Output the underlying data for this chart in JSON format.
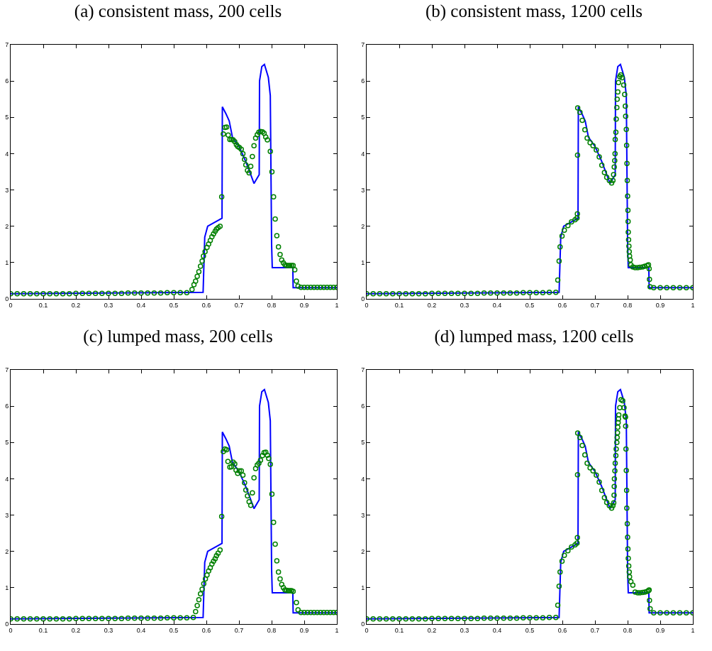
{
  "chart_data": [
    {
      "type": "line",
      "title": "(a) consistent mass, 200 cells",
      "xlim": [
        0,
        1
      ],
      "ylim": [
        0,
        7
      ],
      "xticks": [
        0,
        0.1,
        0.2,
        0.3,
        0.4,
        0.5,
        0.6,
        0.7,
        0.8,
        0.9,
        1
      ],
      "yticks": [
        0,
        1,
        2,
        3,
        4,
        5,
        6,
        7
      ],
      "grid": false,
      "series": [
        {
          "color": "#0000ff",
          "marker": "none",
          "x": [
            0,
            0.59,
            0.595,
            0.604,
            0.648,
            0.649,
            0.66,
            0.67,
            0.68,
            0.7,
            0.72,
            0.735,
            0.746,
            0.762,
            0.763,
            0.77,
            0.778,
            0.79,
            0.796,
            0.8,
            0.802,
            0.845,
            0.865,
            0.866,
            1
          ],
          "values": [
            0.14,
            0.18,
            1.7,
            2.0,
            2.22,
            5.29,
            5.1,
            4.9,
            4.45,
            4.2,
            3.8,
            3.45,
            3.18,
            3.42,
            6.0,
            6.4,
            6.46,
            6.1,
            5.6,
            1.5,
            0.86,
            0.86,
            0.87,
            0.31,
            0.31
          ]
        },
        {
          "type": "scatter",
          "marker": "circle",
          "color": "#008000",
          "x": [
            0,
            0.02,
            0.04,
            0.06,
            0.08,
            0.1,
            0.12,
            0.14,
            0.16,
            0.18,
            0.2,
            0.22,
            0.24,
            0.26,
            0.28,
            0.3,
            0.32,
            0.34,
            0.36,
            0.38,
            0.4,
            0.42,
            0.44,
            0.46,
            0.48,
            0.5,
            0.52,
            0.54,
            0.556,
            0.562,
            0.567,
            0.572,
            0.577,
            0.582,
            0.587,
            0.591,
            0.596,
            0.602,
            0.607,
            0.612,
            0.617,
            0.622,
            0.627,
            0.631,
            0.636,
            0.642,
            0.647,
            0.652,
            0.657,
            0.662,
            0.667,
            0.672,
            0.677,
            0.682,
            0.687,
            0.692,
            0.696,
            0.701,
            0.707,
            0.712,
            0.717,
            0.721,
            0.726,
            0.731,
            0.736,
            0.741,
            0.746,
            0.751,
            0.756,
            0.761,
            0.766,
            0.772,
            0.777,
            0.782,
            0.787,
            0.796,
            0.801,
            0.806,
            0.811,
            0.816,
            0.821,
            0.826,
            0.831,
            0.836,
            0.841,
            0.846,
            0.851,
            0.856,
            0.861,
            0.866,
            0.871,
            0.876,
            0.881,
            0.89,
            0.9,
            0.91,
            0.92,
            0.93,
            0.94,
            0.95,
            0.96,
            0.97,
            0.98,
            0.99,
            1
          ],
          "values": [
            0.14,
            0.14,
            0.14,
            0.14,
            0.14,
            0.14,
            0.14,
            0.14,
            0.14,
            0.14,
            0.15,
            0.15,
            0.15,
            0.15,
            0.15,
            0.15,
            0.15,
            0.15,
            0.16,
            0.16,
            0.16,
            0.16,
            0.16,
            0.16,
            0.17,
            0.17,
            0.17,
            0.17,
            0.26,
            0.39,
            0.49,
            0.62,
            0.75,
            0.9,
            1.04,
            1.18,
            1.3,
            1.42,
            1.51,
            1.61,
            1.71,
            1.79,
            1.86,
            1.92,
            1.96,
            2.0,
            2.81,
            4.54,
            4.72,
            4.73,
            4.51,
            4.39,
            4.39,
            4.38,
            4.33,
            4.25,
            4.2,
            4.17,
            4.12,
            4.0,
            3.84,
            3.69,
            3.54,
            3.47,
            3.65,
            3.92,
            4.22,
            4.43,
            4.52,
            4.59,
            4.61,
            4.6,
            4.56,
            4.46,
            4.38,
            4.06,
            3.5,
            2.81,
            2.2,
            1.74,
            1.43,
            1.22,
            1.07,
            0.99,
            0.94,
            0.92,
            0.92,
            0.92,
            0.92,
            0.92,
            0.8,
            0.49,
            0.35,
            0.32,
            0.32,
            0.32,
            0.32,
            0.32,
            0.32,
            0.32,
            0.32,
            0.32,
            0.32,
            0.32,
            0.32
          ]
        }
      ]
    },
    {
      "type": "line",
      "title": "(b) consistent mass, 1200 cells",
      "xlim": [
        0,
        1
      ],
      "ylim": [
        0,
        7
      ],
      "xticks": [
        0,
        0.1,
        0.2,
        0.3,
        0.4,
        0.5,
        0.6,
        0.7,
        0.8,
        0.9,
        1
      ],
      "yticks": [
        0,
        1,
        2,
        3,
        4,
        5,
        6,
        7
      ],
      "grid": false,
      "series": [
        {
          "color": "#0000ff",
          "marker": "none",
          "x": [
            0,
            0.59,
            0.595,
            0.604,
            0.648,
            0.649,
            0.66,
            0.67,
            0.68,
            0.7,
            0.72,
            0.735,
            0.746,
            0.762,
            0.763,
            0.77,
            0.778,
            0.79,
            0.796,
            0.8,
            0.802,
            0.845,
            0.865,
            0.866,
            1
          ],
          "values": [
            0.14,
            0.18,
            1.7,
            2.0,
            2.22,
            5.29,
            5.1,
            4.9,
            4.45,
            4.2,
            3.8,
            3.45,
            3.18,
            3.42,
            6.0,
            6.4,
            6.46,
            6.1,
            5.6,
            1.5,
            0.86,
            0.86,
            0.87,
            0.31,
            0.31
          ]
        },
        {
          "type": "scatter",
          "marker": "circle",
          "color": "#008000",
          "x": [
            0,
            0.02,
            0.04,
            0.06,
            0.08,
            0.1,
            0.12,
            0.14,
            0.16,
            0.18,
            0.2,
            0.22,
            0.24,
            0.26,
            0.28,
            0.3,
            0.32,
            0.34,
            0.36,
            0.38,
            0.4,
            0.42,
            0.44,
            0.46,
            0.48,
            0.5,
            0.52,
            0.54,
            0.56,
            0.58,
            0.586,
            0.59,
            0.593,
            0.599,
            0.606,
            0.617,
            0.628,
            0.639,
            0.645,
            0.646,
            0.6465,
            0.647,
            0.654,
            0.661,
            0.669,
            0.676,
            0.685,
            0.694,
            0.704,
            0.713,
            0.721,
            0.729,
            0.736,
            0.744,
            0.751,
            0.755,
            0.757,
            0.759,
            0.7605,
            0.7615,
            0.762,
            0.764,
            0.765,
            0.767,
            0.768,
            0.77,
            0.772,
            0.776,
            0.779,
            0.783,
            0.788,
            0.791,
            0.793,
            0.794,
            0.796,
            0.797,
            0.798,
            0.799,
            0.8,
            0.801,
            0.8015,
            0.802,
            0.803,
            0.804,
            0.805,
            0.806,
            0.808,
            0.81,
            0.816,
            0.823,
            0.831,
            0.838,
            0.846,
            0.853,
            0.86,
            0.864,
            0.866,
            0.867,
            0.869,
            0.88,
            0.9,
            0.92,
            0.94,
            0.96,
            0.98,
            1
          ],
          "values": [
            0.14,
            0.14,
            0.14,
            0.14,
            0.14,
            0.14,
            0.14,
            0.14,
            0.14,
            0.14,
            0.15,
            0.15,
            0.15,
            0.15,
            0.15,
            0.15,
            0.15,
            0.15,
            0.16,
            0.16,
            0.16,
            0.16,
            0.16,
            0.16,
            0.17,
            0.17,
            0.17,
            0.17,
            0.18,
            0.18,
            0.52,
            1.04,
            1.43,
            1.73,
            1.89,
            2.02,
            2.12,
            2.18,
            2.23,
            2.34,
            3.96,
            5.26,
            5.14,
            4.92,
            4.66,
            4.43,
            4.3,
            4.22,
            4.1,
            3.91,
            3.68,
            3.48,
            3.35,
            3.26,
            3.19,
            3.26,
            3.42,
            3.63,
            3.81,
            4.0,
            4.39,
            4.59,
            4.95,
            5.27,
            5.5,
            5.7,
            5.96,
            6.12,
            6.17,
            6.09,
            5.89,
            5.63,
            5.31,
            5.03,
            4.67,
            4.23,
            3.73,
            3.26,
            2.83,
            2.44,
            2.13,
            1.84,
            1.63,
            1.45,
            1.3,
            1.18,
            1.07,
            0.94,
            0.88,
            0.86,
            0.86,
            0.87,
            0.88,
            0.9,
            0.92,
            0.94,
            0.83,
            0.54,
            0.33,
            0.31,
            0.31,
            0.31,
            0.31,
            0.31,
            0.31,
            0.31
          ]
        }
      ]
    },
    {
      "type": "line",
      "title": "(c) lumped mass, 200 cells",
      "xlim": [
        0,
        1
      ],
      "ylim": [
        0,
        7
      ],
      "xticks": [
        0,
        0.1,
        0.2,
        0.3,
        0.4,
        0.5,
        0.6,
        0.7,
        0.8,
        0.9,
        1
      ],
      "yticks": [
        0,
        1,
        2,
        3,
        4,
        5,
        6,
        7
      ],
      "grid": false,
      "series": [
        {
          "color": "#0000ff",
          "marker": "none",
          "x": [
            0,
            0.59,
            0.595,
            0.604,
            0.648,
            0.649,
            0.66,
            0.67,
            0.68,
            0.7,
            0.72,
            0.735,
            0.746,
            0.762,
            0.763,
            0.77,
            0.778,
            0.79,
            0.796,
            0.8,
            0.802,
            0.845,
            0.865,
            0.866,
            1
          ],
          "values": [
            0.14,
            0.18,
            1.7,
            2.0,
            2.22,
            5.29,
            5.1,
            4.9,
            4.45,
            4.2,
            3.8,
            3.45,
            3.18,
            3.42,
            6.0,
            6.4,
            6.46,
            6.1,
            5.6,
            1.5,
            0.86,
            0.86,
            0.87,
            0.31,
            0.31
          ]
        },
        {
          "type": "scatter",
          "marker": "circle",
          "color": "#008000",
          "x": [
            0,
            0.02,
            0.04,
            0.06,
            0.08,
            0.1,
            0.12,
            0.14,
            0.16,
            0.18,
            0.2,
            0.22,
            0.24,
            0.26,
            0.28,
            0.3,
            0.32,
            0.34,
            0.36,
            0.38,
            0.4,
            0.42,
            0.44,
            0.46,
            0.48,
            0.5,
            0.52,
            0.54,
            0.56,
            0.567,
            0.572,
            0.577,
            0.582,
            0.587,
            0.592,
            0.597,
            0.602,
            0.607,
            0.612,
            0.617,
            0.622,
            0.627,
            0.631,
            0.636,
            0.642,
            0.647,
            0.652,
            0.657,
            0.662,
            0.666,
            0.672,
            0.677,
            0.682,
            0.687,
            0.691,
            0.696,
            0.701,
            0.707,
            0.712,
            0.717,
            0.721,
            0.726,
            0.731,
            0.736,
            0.741,
            0.746,
            0.751,
            0.756,
            0.761,
            0.766,
            0.772,
            0.777,
            0.782,
            0.787,
            0.791,
            0.796,
            0.801,
            0.806,
            0.811,
            0.816,
            0.821,
            0.826,
            0.831,
            0.836,
            0.841,
            0.846,
            0.851,
            0.856,
            0.861,
            0.866,
            0.876,
            0.881,
            0.89,
            0.9,
            0.91,
            0.92,
            0.93,
            0.94,
            0.95,
            0.96,
            0.97,
            0.98,
            0.99,
            1
          ],
          "values": [
            0.14,
            0.14,
            0.14,
            0.14,
            0.14,
            0.14,
            0.14,
            0.14,
            0.14,
            0.14,
            0.15,
            0.15,
            0.15,
            0.15,
            0.15,
            0.15,
            0.15,
            0.15,
            0.16,
            0.16,
            0.16,
            0.16,
            0.16,
            0.16,
            0.17,
            0.17,
            0.17,
            0.17,
            0.18,
            0.34,
            0.51,
            0.67,
            0.83,
            0.96,
            1.11,
            1.24,
            1.35,
            1.46,
            1.55,
            1.65,
            1.73,
            1.8,
            1.88,
            1.95,
            2.04,
            2.96,
            4.75,
            4.82,
            4.8,
            4.48,
            4.32,
            4.33,
            4.46,
            4.41,
            4.24,
            4.15,
            4.22,
            4.22,
            4.1,
            3.89,
            3.69,
            3.53,
            3.37,
            3.27,
            3.61,
            4.03,
            4.28,
            4.38,
            4.43,
            4.51,
            4.64,
            4.72,
            4.73,
            4.65,
            4.56,
            4.4,
            3.58,
            2.8,
            2.2,
            1.74,
            1.43,
            1.24,
            1.09,
            1.0,
            0.94,
            0.93,
            0.92,
            0.92,
            0.92,
            0.9,
            0.59,
            0.39,
            0.32,
            0.32,
            0.32,
            0.32,
            0.32,
            0.32,
            0.32,
            0.32,
            0.32,
            0.32,
            0.32,
            0.32
          ]
        }
      ]
    },
    {
      "type": "line",
      "title": "(d) lumped mass, 1200 cells",
      "xlim": [
        0,
        1
      ],
      "ylim": [
        0,
        7
      ],
      "xticks": [
        0,
        0.1,
        0.2,
        0.3,
        0.4,
        0.5,
        0.6,
        0.7,
        0.8,
        0.9,
        1
      ],
      "yticks": [
        0,
        1,
        2,
        3,
        4,
        5,
        6,
        7
      ],
      "grid": false,
      "series": [
        {
          "color": "#0000ff",
          "marker": "none",
          "x": [
            0,
            0.59,
            0.595,
            0.604,
            0.648,
            0.649,
            0.66,
            0.67,
            0.68,
            0.7,
            0.72,
            0.735,
            0.746,
            0.762,
            0.763,
            0.77,
            0.778,
            0.79,
            0.796,
            0.8,
            0.802,
            0.845,
            0.865,
            0.866,
            1
          ],
          "values": [
            0.14,
            0.18,
            1.7,
            2.0,
            2.22,
            5.29,
            5.1,
            4.9,
            4.45,
            4.2,
            3.8,
            3.45,
            3.18,
            3.42,
            6.0,
            6.4,
            6.46,
            6.1,
            5.6,
            1.5,
            0.86,
            0.86,
            0.87,
            0.31,
            0.31
          ]
        },
        {
          "type": "scatter",
          "marker": "circle",
          "color": "#008000",
          "x": [
            0,
            0.02,
            0.04,
            0.06,
            0.08,
            0.1,
            0.12,
            0.14,
            0.16,
            0.18,
            0.2,
            0.22,
            0.24,
            0.26,
            0.28,
            0.3,
            0.32,
            0.34,
            0.36,
            0.38,
            0.4,
            0.42,
            0.44,
            0.46,
            0.48,
            0.5,
            0.52,
            0.54,
            0.56,
            0.58,
            0.586,
            0.59,
            0.593,
            0.599,
            0.606,
            0.617,
            0.628,
            0.639,
            0.645,
            0.646,
            0.6465,
            0.647,
            0.654,
            0.661,
            0.669,
            0.676,
            0.685,
            0.694,
            0.704,
            0.713,
            0.721,
            0.729,
            0.736,
            0.744,
            0.751,
            0.755,
            0.7575,
            0.7585,
            0.759,
            0.7595,
            0.761,
            0.762,
            0.764,
            0.765,
            0.767,
            0.768,
            0.769,
            0.77,
            0.771,
            0.772,
            0.773,
            0.776,
            0.78,
            0.785,
            0.789,
            0.792,
            0.7935,
            0.794,
            0.795,
            0.796,
            0.797,
            0.7975,
            0.799,
            0.8,
            0.801,
            0.802,
            0.8035,
            0.805,
            0.806,
            0.81,
            0.816,
            0.823,
            0.831,
            0.838,
            0.846,
            0.853,
            0.86,
            0.864,
            0.866,
            0.867,
            0.869,
            0.88,
            0.9,
            0.92,
            0.94,
            0.96,
            0.98,
            1
          ],
          "values": [
            0.14,
            0.14,
            0.14,
            0.14,
            0.14,
            0.14,
            0.14,
            0.14,
            0.14,
            0.14,
            0.15,
            0.15,
            0.15,
            0.15,
            0.15,
            0.15,
            0.15,
            0.15,
            0.16,
            0.16,
            0.16,
            0.16,
            0.16,
            0.16,
            0.17,
            0.17,
            0.17,
            0.17,
            0.18,
            0.18,
            0.52,
            1.04,
            1.43,
            1.73,
            1.89,
            2.02,
            2.12,
            2.18,
            2.23,
            2.38,
            4.11,
            5.26,
            5.14,
            4.92,
            4.66,
            4.43,
            4.3,
            4.22,
            4.1,
            3.91,
            3.68,
            3.48,
            3.35,
            3.26,
            3.19,
            3.26,
            3.34,
            3.55,
            3.79,
            4.0,
            4.22,
            4.43,
            4.64,
            4.82,
            5.0,
            5.14,
            5.27,
            5.42,
            5.55,
            5.65,
            5.76,
            5.96,
            6.18,
            6.15,
            5.96,
            5.73,
            5.7,
            5.45,
            4.82,
            4.23,
            3.68,
            3.19,
            2.76,
            2.39,
            2.07,
            1.81,
            1.6,
            1.43,
            1.3,
            1.17,
            1.07,
            0.88,
            0.86,
            0.86,
            0.87,
            0.88,
            0.9,
            0.92,
            0.94,
            0.65,
            0.42,
            0.31,
            0.31,
            0.31,
            0.31,
            0.31,
            0.31,
            0.31
          ]
        }
      ]
    }
  ]
}
